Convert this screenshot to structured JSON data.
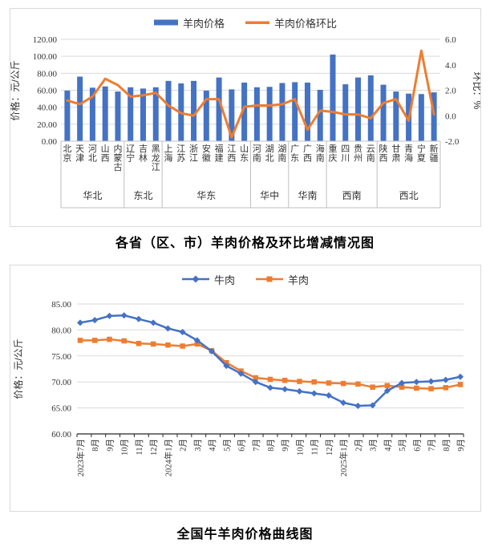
{
  "colors": {
    "bar_blue": "#4472C4",
    "line_orange": "#ED7D31",
    "grid": "#D9D9D9",
    "table_border": "#BFBFBF",
    "axis_line": "#262626",
    "text": "#333333",
    "negative_tick": "#FF0000"
  },
  "chart_data": [
    {
      "id": "provincial-mutton-price",
      "type": "bar+line",
      "title": "各省（区、市）羊肉价格及环比增减情况图",
      "ylabel_left": "价格：元/公斤",
      "ylabel_right": "环比：%",
      "ylim_left": [
        0,
        120
      ],
      "ystep_left": 20,
      "ylim_right": [
        -2.0,
        6.0
      ],
      "ystep_right": 2.0,
      "grid": true,
      "legend_position": "top",
      "categories": [
        "北京",
        "天津",
        "河北",
        "山西",
        "内蒙古",
        "辽宁",
        "吉林",
        "黑龙江",
        "上海",
        "江苏",
        "浙江",
        "安徽",
        "福建",
        "江西",
        "山东",
        "河南",
        "湖北",
        "湖南",
        "广东",
        "广西",
        "海南",
        "重庆",
        "四川",
        "贵州",
        "云南",
        "陕西",
        "甘肃",
        "青海",
        "宁夏",
        "新疆"
      ],
      "regions": [
        {
          "name": "华北",
          "provinces": [
            "北京",
            "天津",
            "河北",
            "山西",
            "内蒙古"
          ]
        },
        {
          "name": "东北",
          "provinces": [
            "辽宁",
            "吉林",
            "黑龙江"
          ]
        },
        {
          "name": "华东",
          "provinces": [
            "上海",
            "江苏",
            "浙江",
            "安徽",
            "福建",
            "江西",
            "山东"
          ]
        },
        {
          "name": "华中",
          "provinces": [
            "河南",
            "湖北",
            "湖南"
          ]
        },
        {
          "name": "华南",
          "provinces": [
            "广东",
            "广西",
            "海南"
          ]
        },
        {
          "name": "西南",
          "provinces": [
            "重庆",
            "四川",
            "贵州",
            "云南"
          ]
        },
        {
          "name": "西北",
          "provinces": [
            "陕西",
            "甘肃",
            "青海",
            "宁夏",
            "新疆"
          ]
        }
      ],
      "series": [
        {
          "name": "羊肉价格",
          "type": "bar",
          "axis": "left",
          "color": "#4472C4",
          "values": [
            59.5,
            76,
            63,
            64.5,
            58.5,
            63.5,
            62,
            63.5,
            71,
            68,
            71,
            59.5,
            75,
            61,
            69,
            63.5,
            64,
            68.5,
            69.5,
            69,
            60.5,
            102,
            67,
            75,
            77.5,
            66.5,
            58.5,
            56,
            55.5,
            57.5
          ]
        },
        {
          "name": "羊肉价格环比",
          "type": "line",
          "axis": "right",
          "color": "#ED7D31",
          "values": [
            1.2,
            0.9,
            1.5,
            2.9,
            2.4,
            1.5,
            1.6,
            1.8,
            0.8,
            0.2,
            0.0,
            1.3,
            1.3,
            -1.7,
            0.7,
            0.8,
            0.8,
            0.9,
            1.3,
            -1.1,
            0.4,
            0.3,
            0.1,
            0.1,
            -0.2,
            1.0,
            1.3,
            -0.4,
            5.1,
            0.1
          ]
        }
      ]
    },
    {
      "id": "national-beef-mutton-price",
      "type": "line",
      "title": "全国牛羊肉价格曲线图",
      "ylabel": "价格：元/公斤",
      "ylim": [
        60,
        85
      ],
      "ystep": 5,
      "grid": true,
      "legend_position": "top",
      "x": [
        "2023年7月",
        "8月",
        "9月",
        "10月",
        "11月",
        "12月",
        "2024年1月",
        "2月",
        "3月",
        "4月",
        "5月",
        "6月",
        "7月",
        "8月",
        "9月",
        "10月",
        "11月",
        "12月",
        "2025年1月",
        "2月",
        "3月",
        "4月",
        "5月",
        "6月",
        "7月",
        "8月",
        "9月"
      ],
      "series": [
        {
          "name": "牛肉",
          "color": "#4472C4",
          "marker": "diamond",
          "values": [
            81.4,
            81.9,
            82.7,
            82.8,
            82.1,
            81.4,
            80.3,
            79.6,
            78.0,
            75.9,
            73.1,
            71.6,
            70.0,
            68.9,
            68.6,
            68.2,
            67.8,
            67.4,
            66.0,
            65.4,
            65.5,
            68.3,
            69.8,
            70.0,
            70.1,
            70.4,
            71.0
          ]
        },
        {
          "name": "羊肉",
          "color": "#ED7D31",
          "marker": "square",
          "values": [
            78.0,
            78.0,
            78.2,
            77.9,
            77.4,
            77.3,
            77.1,
            76.9,
            77.3,
            76.0,
            73.7,
            72.1,
            70.8,
            70.5,
            70.3,
            70.1,
            70.0,
            69.8,
            69.7,
            69.6,
            69.0,
            69.3,
            69.0,
            68.8,
            68.7,
            68.9,
            69.5
          ]
        }
      ]
    }
  ]
}
